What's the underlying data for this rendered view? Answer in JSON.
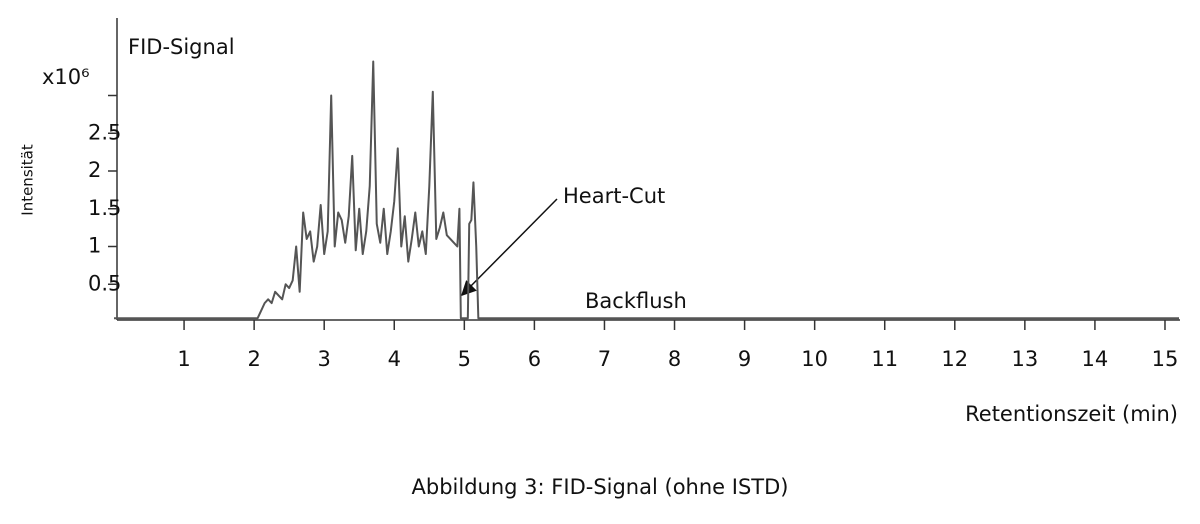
{
  "chart_data": {
    "type": "line",
    "ylabel": "Intensität",
    "y_unit_label": "x10⁶",
    "xlabel": "Retentionszeit (min)",
    "caption": "Abbildung 3: FID-Signal (ohne ISTD)",
    "annotations": [
      "Heart-Cut",
      "Backflush"
    ],
    "x": [
      0,
      2.05,
      2.1,
      2.15,
      2.2,
      2.25,
      2.3,
      2.35,
      2.4,
      2.45,
      2.5,
      2.55,
      2.6,
      2.65,
      2.7,
      2.75,
      2.8,
      2.85,
      2.9,
      2.95,
      3.0,
      3.05,
      3.1,
      3.15,
      3.2,
      3.25,
      3.3,
      3.35,
      3.4,
      3.45,
      3.5,
      3.55,
      3.6,
      3.65,
      3.7,
      3.75,
      3.8,
      3.85,
      3.9,
      3.95,
      4.0,
      4.05,
      4.1,
      4.15,
      4.2,
      4.25,
      4.3,
      4.35,
      4.4,
      4.45,
      4.5,
      4.55,
      4.6,
      4.65,
      4.7,
      4.75,
      4.8,
      4.85,
      4.9,
      4.93,
      4.95,
      5.05,
      5.07,
      5.1,
      5.13,
      5.17,
      5.2,
      15.2
    ],
    "series": [
      {
        "name": "FID-Signal",
        "color": "#555555",
        "values": [
          0.05,
          0.05,
          0.15,
          0.25,
          0.3,
          0.25,
          0.4,
          0.35,
          0.3,
          0.5,
          0.45,
          0.55,
          1.0,
          0.4,
          1.45,
          1.1,
          1.2,
          0.8,
          1.0,
          1.55,
          0.9,
          1.2,
          3.0,
          1.0,
          1.45,
          1.35,
          1.05,
          1.4,
          2.2,
          0.95,
          1.5,
          0.9,
          1.2,
          1.8,
          3.45,
          1.3,
          1.05,
          1.5,
          0.9,
          1.2,
          1.6,
          2.3,
          1.0,
          1.4,
          0.8,
          1.1,
          1.45,
          1.0,
          1.2,
          0.9,
          1.8,
          3.05,
          1.1,
          1.25,
          1.45,
          1.15,
          1.1,
          1.05,
          1.0,
          1.5,
          0.05,
          0.05,
          1.3,
          1.35,
          1.85,
          1.0,
          0.05,
          0.05
        ]
      }
    ],
    "xlim": [
      0,
      15.2
    ],
    "xticks": [
      1,
      2,
      3,
      4,
      5,
      6,
      7,
      8,
      9,
      10,
      11,
      12,
      13,
      14,
      15
    ],
    "ylim": [
      0,
      4
    ],
    "yticks": [
      0.5,
      1,
      1.5,
      2,
      2.5,
      {
        "value": 3,
        "label": null
      }
    ],
    "grid": false
  }
}
